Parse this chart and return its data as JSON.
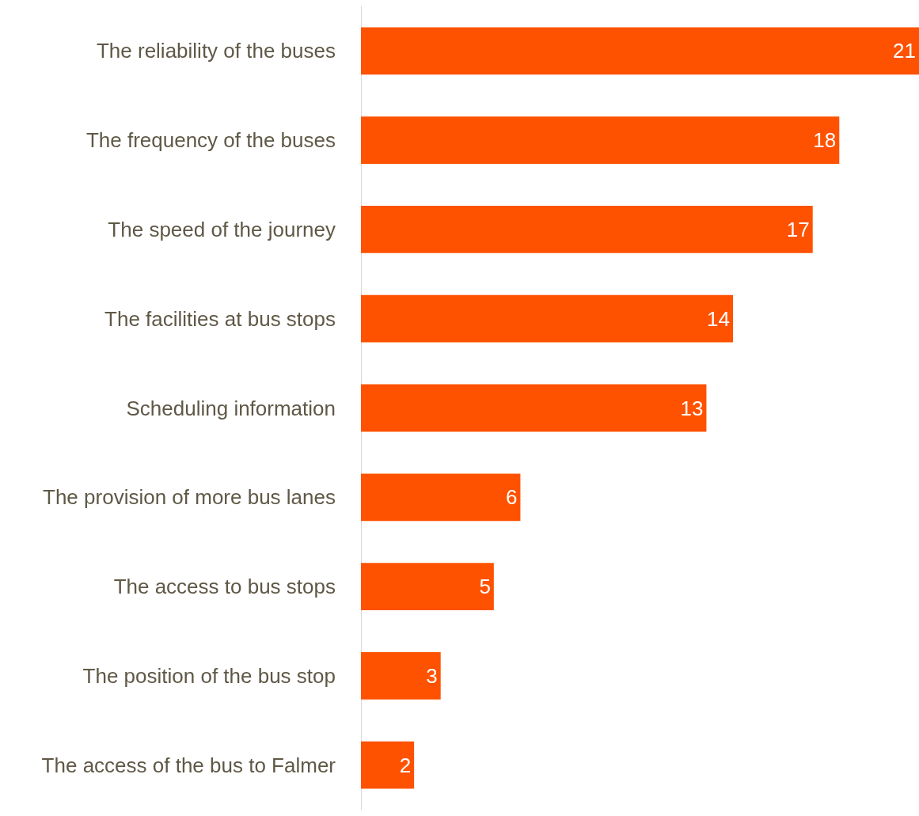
{
  "chart_data": {
    "type": "bar",
    "orientation": "horizontal",
    "categories": [
      "The reliability of the buses",
      "The frequency of the buses",
      "The speed of the journey",
      "The facilities at bus stops",
      "Scheduling information",
      "The provision of more bus lanes",
      "The access to bus stops",
      "The position of the bus stop",
      "The access of the bus to Falmer"
    ],
    "values": [
      21,
      18,
      17,
      14,
      13,
      6,
      5,
      3,
      2
    ],
    "color": "#ff5200",
    "data_labels": true,
    "grid": false
  }
}
